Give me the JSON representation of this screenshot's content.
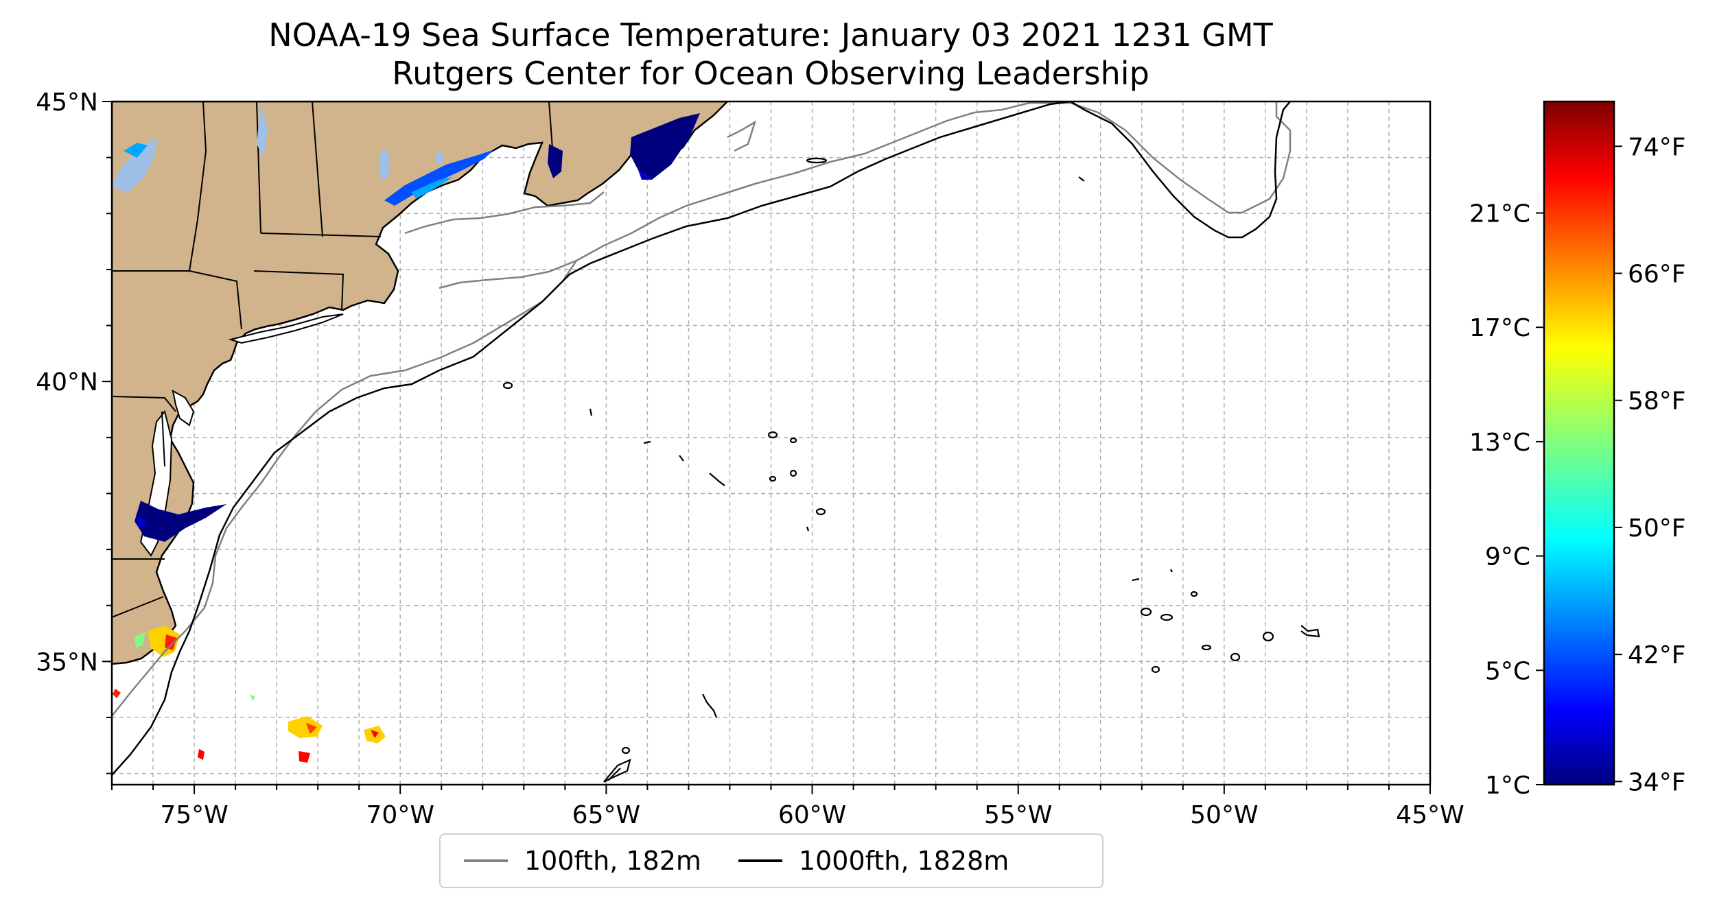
{
  "title": {
    "line1": "NOAA-19 Sea Surface Temperature: January 03 2021 1231 GMT",
    "line2": "Rutgers Center for Ocean Observing Leadership"
  },
  "map": {
    "lon_range": [
      -77,
      -45
    ],
    "lat_range": [
      32.8,
      45
    ],
    "x_ticks": [
      {
        "value": -75,
        "label": "75°W"
      },
      {
        "value": -70,
        "label": "70°W"
      },
      {
        "value": -65,
        "label": "65°W"
      },
      {
        "value": -60,
        "label": "60°W"
      },
      {
        "value": -55,
        "label": "55°W"
      },
      {
        "value": -50,
        "label": "50°W"
      },
      {
        "value": -45,
        "label": "45°W"
      }
    ],
    "y_ticks": [
      {
        "value": 45,
        "label": "45°N"
      },
      {
        "value": 40,
        "label": "40°N"
      },
      {
        "value": 35,
        "label": "35°N"
      }
    ],
    "grid": true,
    "colors": {
      "land": "#d2b48c",
      "lakes": "#9dbfe8",
      "isobath_100fth": "#808080",
      "isobath_1000fth": "#000000",
      "grid": "#b0b0b0"
    }
  },
  "colorbar": {
    "colormap": "jet",
    "celsius_ticks": [
      {
        "value": 1,
        "label": "1°C"
      },
      {
        "value": 5,
        "label": "5°C"
      },
      {
        "value": 9,
        "label": "9°C"
      },
      {
        "value": 13,
        "label": "13°C"
      },
      {
        "value": 17,
        "label": "17°C"
      },
      {
        "value": 21,
        "label": "21°C"
      }
    ],
    "fahrenheit_ticks": [
      {
        "value": 34,
        "label": "34°F"
      },
      {
        "value": 42,
        "label": "42°F"
      },
      {
        "value": 50,
        "label": "50°F"
      },
      {
        "value": 58,
        "label": "58°F"
      },
      {
        "value": 66,
        "label": "66°F"
      },
      {
        "value": 74,
        "label": "74°F"
      }
    ],
    "range_c": [
      1.0,
      24.9
    ]
  },
  "legend": {
    "placement": "bottom-center",
    "entries": [
      {
        "label": "100fth, 182m",
        "color": "#808080"
      },
      {
        "label": "1000fth, 1828m",
        "color": "#000000"
      }
    ]
  }
}
